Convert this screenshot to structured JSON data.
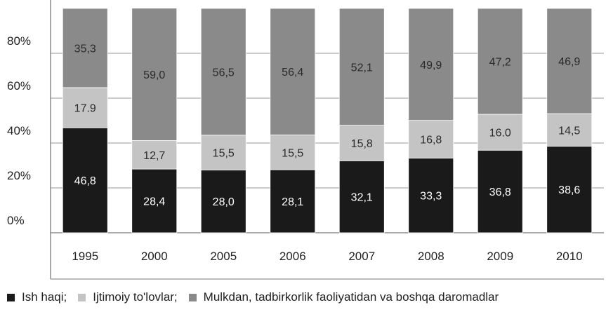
{
  "chart_data": {
    "type": "bar",
    "stacked": true,
    "percent_stacked": true,
    "categories": [
      "1995",
      "2000",
      "2005",
      "2006",
      "2007",
      "2008",
      "2009",
      "2010"
    ],
    "series": [
      {
        "name": "Ish haqi;",
        "color": "#1a1a1a",
        "values": [
          46.8,
          28.4,
          28.0,
          28.1,
          32.1,
          33.3,
          36.8,
          38.6
        ],
        "labels": [
          "46,8",
          "28,4",
          "28,0",
          "28,1",
          "32,1",
          "33,3",
          "36,8",
          "38,6"
        ]
      },
      {
        "name": "Ijtimoiy to'lovlar;",
        "color": "#c4c4c4",
        "values": [
          17.9,
          12.7,
          15.5,
          15.5,
          15.8,
          16.8,
          16.0,
          14.5
        ],
        "labels": [
          "17.9",
          "12,7",
          "15,5",
          "15,5",
          "15,8",
          "16,8",
          "16.0",
          "14,5"
        ]
      },
      {
        "name": "Mulkdan, tadbirkorlik faoliyatidan va boshqa daromadlar",
        "color": "#8a8a8a",
        "values": [
          35.3,
          59.0,
          56.5,
          56.4,
          52.1,
          49.9,
          47.2,
          46.9
        ],
        "labels": [
          "35,3",
          "59,0",
          "56,5",
          "56,4",
          "52,1",
          "49,9",
          "47,2",
          "46,9"
        ]
      }
    ],
    "y_ticks": [
      "0%",
      "20%",
      "40%",
      "60%",
      "80%"
    ],
    "ylim": [
      0,
      100
    ],
    "grid": true,
    "legend_position": "bottom"
  }
}
